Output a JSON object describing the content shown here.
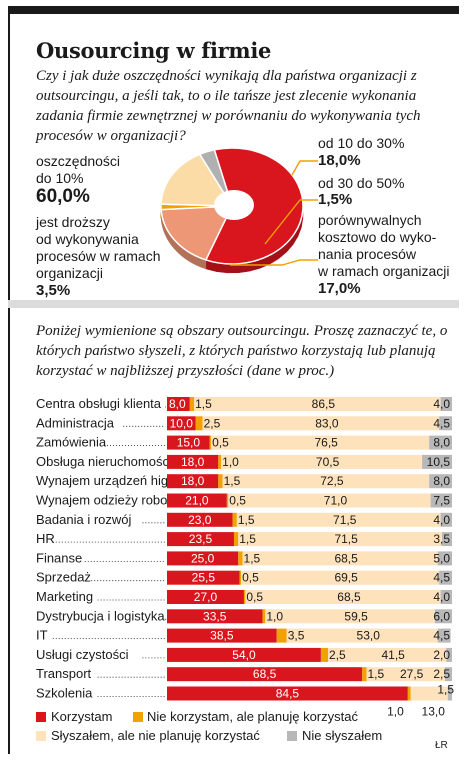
{
  "title": "Ousourcing w firmie",
  "question1": "Czy i jak duże oszczędności wynikają dla państwa organizacji z outsourcingu, a jeśli tak, to o ile tańsze jest zlecenie wykonania zadania firmie zewnętrznej w porównaniu do wykonywania tych procesów w organizacji?",
  "question2": "Poniżej wymienione są obszary outsourcingu. Proszę zaznaczyć te, o których państwo słyszeli, z których państwo korzystają lub planują korzystać w najbliższej przyszłości (dane w proc.)",
  "credit": "ŁR",
  "colors": {
    "korzystam": "#d9161e",
    "planuje": "#f2a100",
    "slyszalem": "#fde2bb",
    "nie_slyszalem": "#b8b8b8",
    "pie_red": "#d9161e",
    "pie_salmon": "#ee9777",
    "pie_orange": "#f2a100",
    "pie_peach": "#fbdca7",
    "pie_grey": "#b0b0b0"
  },
  "chart_data": [
    {
      "type": "pie",
      "slices": [
        {
          "label_lines": [
            "oszczędności",
            "do 10%"
          ],
          "value_text": "60,0%",
          "value": 60.0,
          "color_key": "pie_red"
        },
        {
          "label_lines": [
            "od 10 do 30%"
          ],
          "value_text": "18,0%",
          "value": 18.0,
          "color_key": "pie_salmon"
        },
        {
          "label_lines": [
            "od 30 do 50%"
          ],
          "value_text": "1,5%",
          "value": 1.5,
          "color_key": "pie_orange"
        },
        {
          "label_lines": [
            "porównywalnych",
            "kosztowo do wyko-",
            "nania procesów",
            "w ramach organizacji"
          ],
          "value_text": "17,0%",
          "value": 17.0,
          "color_key": "pie_peach"
        },
        {
          "label_lines": [
            "jest droższy",
            "od wykonywania",
            "procesów w ramach",
            "organizacji"
          ],
          "value_text": "3,5%",
          "value": 3.5,
          "color_key": "pie_grey"
        }
      ]
    },
    {
      "type": "bar",
      "stacked": true,
      "orientation": "horizontal",
      "categories": [
        "Centra obsługi klienta",
        "Administracja",
        "Zamówienia",
        "Obsługa nieruchomości",
        "Wynajem urządzeń higieny",
        "Wynajem odzieży roboczej",
        "Badania i rozwój",
        "HR",
        "Finanse",
        "Sprzedaż",
        "Marketing",
        "Dystrybucja i logistyka",
        "IT",
        "Usługi czystości",
        "Transport",
        "Szkolenia"
      ],
      "series": [
        {
          "name": "Korzystam",
          "color_key": "korzystam",
          "values": [
            8.0,
            10.0,
            15.0,
            18.0,
            18.0,
            21.0,
            23.0,
            23.5,
            25.0,
            25.5,
            27.0,
            33.5,
            38.5,
            54.0,
            68.5,
            84.5
          ],
          "labels": [
            "8,0",
            "10,0",
            "15,0",
            "18,0",
            "18,0",
            "21,0",
            "23,0",
            "23,5",
            "25,0",
            "25,5",
            "27,0",
            "33,5",
            "38,5",
            "54,0",
            "68,5",
            "84,5"
          ]
        },
        {
          "name": "Nie korzystam, ale planuję korzystać",
          "color_key": "planuje",
          "values": [
            1.5,
            2.5,
            0.5,
            1.0,
            1.5,
            0.5,
            1.5,
            1.5,
            1.5,
            0.5,
            0.5,
            1.0,
            3.5,
            2.5,
            1.5,
            1.0
          ],
          "labels": [
            "1,5",
            "2,5",
            "0,5",
            "1,0",
            "1,5",
            "0,5",
            "1,5",
            "1,5",
            "1,5",
            "0,5",
            "0,5",
            "1,0",
            "3,5",
            "2,5",
            "1,5",
            "1,0"
          ]
        },
        {
          "name": "Słyszałem, ale nie planuję korzystać",
          "color_key": "slyszalem",
          "values": [
            86.5,
            83.0,
            76.5,
            70.5,
            72.5,
            71.0,
            71.5,
            71.5,
            68.5,
            69.5,
            68.5,
            59.5,
            53.0,
            41.5,
            27.5,
            13.0
          ],
          "labels": [
            "86,5",
            "83,0",
            "76,5",
            "70,5",
            "72,5",
            "71,0",
            "71,5",
            "71,5",
            "68,5",
            "69,5",
            "68,5",
            "59,5",
            "53,0",
            "41,5",
            "27,5",
            "13,0"
          ]
        },
        {
          "name": "Nie słyszałem",
          "color_key": "nie_slyszalem",
          "values": [
            4.0,
            4.5,
            8.0,
            10.5,
            8.0,
            7.5,
            4.0,
            3.5,
            5.0,
            4.5,
            4.0,
            6.0,
            4.5,
            2.0,
            2.5,
            1.5
          ],
          "labels": [
            "4,0",
            "4,5",
            "8,0",
            "10,5",
            "8,0",
            "7,5",
            "4,0",
            "3,5",
            "5,0",
            "4,5",
            "4,0",
            "6,0",
            "4,5",
            "2,0",
            "2,5",
            "1,5"
          ]
        }
      ],
      "legend": [
        {
          "label": "Korzystam",
          "color_key": "korzystam"
        },
        {
          "label": "Nie korzystam, ale planuję korzystać",
          "color_key": "planuje"
        },
        {
          "label": "Słyszałem, ale nie planuję korzystać",
          "color_key": "slyszalem"
        },
        {
          "label": "Nie słyszałem",
          "color_key": "nie_slyszalem"
        }
      ]
    }
  ]
}
